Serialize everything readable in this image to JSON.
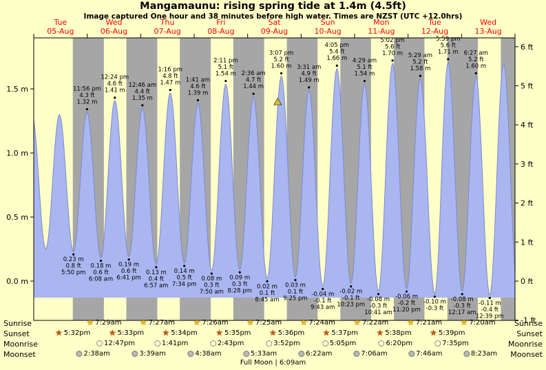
{
  "colors": {
    "background": "#ffffc8",
    "day_band": "#ffffc8",
    "night_band": "#a6a6a6",
    "tide_fill": "#aab6f0",
    "tide_line": "#7b8ad0",
    "date_label": "#ff0000",
    "marker": "#d6c428"
  },
  "chart_data": {
    "type": "area",
    "title": "Mangamaunu: rising  spring tide at 1.4m (4.5ft)",
    "subtitle": "Image captured One hour and 38 minutes before high water. Times are NZST (UTC +12.0hrs)",
    "days": [
      {
        "dow": "Tue",
        "date": "05-Aug"
      },
      {
        "dow": "Wed",
        "date": "06-Aug"
      },
      {
        "dow": "Thu",
        "date": "07-Aug"
      },
      {
        "dow": "Fri",
        "date": "08-Aug"
      },
      {
        "dow": "Sat",
        "date": "09-Aug"
      },
      {
        "dow": "Sun",
        "date": "10-Aug"
      },
      {
        "dow": "Mon",
        "date": "11-Aug"
      },
      {
        "dow": "Tue",
        "date": "12-Aug"
      },
      {
        "dow": "Wed",
        "date": "13-Aug"
      }
    ],
    "y_axis_left": {
      "unit": "m",
      "ticks": [
        0,
        0.5,
        1,
        1.5
      ]
    },
    "y_axis_right": {
      "unit": "ft",
      "ticks": [
        -1,
        0,
        1,
        2,
        3,
        4,
        5,
        6
      ]
    },
    "tide_events": [
      {
        "hours": -0.8,
        "height_m": 1.3,
        "type": "high",
        "label": null
      },
      {
        "hours": 5.4,
        "height_m": 0.25,
        "type": "low",
        "label": null
      },
      {
        "hours": 11.5,
        "height_m": 1.3,
        "type": "high",
        "label": null
      },
      {
        "hours": 17.83,
        "height_m": 0.23,
        "type": "low",
        "label": [
          "0.23 m",
          "0.8 ft",
          "5:50 pm"
        ]
      },
      {
        "hours": 23.93,
        "height_m": 1.32,
        "type": "high",
        "label": [
          "11:56 pm",
          "4.3 ft",
          "1.32 m"
        ]
      },
      {
        "hours": 30.13,
        "height_m": 0.18,
        "type": "low",
        "label": [
          "0.18 m",
          "0.6 ft",
          "6:08 am"
        ]
      },
      {
        "hours": 36.4,
        "height_m": 1.41,
        "type": "high",
        "label": [
          "12:24 pm",
          "4.6 ft",
          "1.41 m"
        ]
      },
      {
        "hours": 42.68,
        "height_m": 0.19,
        "type": "low",
        "label": [
          "0.19 m",
          "0.6 ft",
          "6:41 pm"
        ]
      },
      {
        "hours": 48.77,
        "height_m": 1.35,
        "type": "high",
        "label": [
          "12:46 am",
          "4.4 ft",
          "1.35 m"
        ]
      },
      {
        "hours": 54.95,
        "height_m": 0.13,
        "type": "low",
        "label": [
          "0.13 m",
          "0.4 ft",
          "6:57 am"
        ]
      },
      {
        "hours": 61.27,
        "height_m": 1.47,
        "type": "high",
        "label": [
          "1:16 pm",
          "4.8 ft",
          "1.47 m"
        ]
      },
      {
        "hours": 67.57,
        "height_m": 0.14,
        "type": "low",
        "label": [
          "0.14 m",
          "0.5 ft",
          "7:34 pm"
        ]
      },
      {
        "hours": 73.68,
        "height_m": 1.39,
        "type": "high",
        "label": [
          "1:41 am",
          "4.6 ft",
          "1.39 m"
        ]
      },
      {
        "hours": 79.83,
        "height_m": 0.08,
        "type": "low",
        "label": [
          "0.08 m",
          "0.3 ft",
          "7:50 am"
        ]
      },
      {
        "hours": 86.18,
        "height_m": 1.54,
        "type": "high",
        "label": [
          "2:11 pm",
          "5.1 ft",
          "1.54 m"
        ]
      },
      {
        "hours": 92.47,
        "height_m": 0.09,
        "type": "low",
        "label": [
          "0.09 m",
          "0.3 ft",
          "8:28 pm"
        ]
      },
      {
        "hours": 98.6,
        "height_m": 1.44,
        "type": "high",
        "label": [
          "2:36 am",
          "4.7 ft",
          "1.44 m"
        ]
      },
      {
        "hours": 104.75,
        "height_m": 0.02,
        "type": "low",
        "label": [
          "0.02 m",
          "0.1 ft",
          "8:45 am"
        ]
      },
      {
        "hours": 111.12,
        "height_m": 1.6,
        "type": "high",
        "label": [
          "3:07 pm",
          "5.2 ft",
          "1.60 m"
        ]
      },
      {
        "hours": 117.42,
        "height_m": 0.03,
        "type": "low",
        "label": [
          "0.03 m",
          "0.1 ft",
          "9:25 pm"
        ]
      },
      {
        "hours": 123.52,
        "height_m": 1.49,
        "type": "high",
        "label": [
          "3:31 am",
          "4.9 ft",
          "1.49 m"
        ]
      },
      {
        "hours": 129.72,
        "height_m": -0.04,
        "type": "low",
        "label": [
          "-0.04 m",
          "-0.1 ft",
          "9:43 am"
        ]
      },
      {
        "hours": 136.08,
        "height_m": 1.66,
        "type": "high",
        "label": [
          "4:05 pm",
          "5.4 ft",
          "1.66 m"
        ]
      },
      {
        "hours": 142.38,
        "height_m": -0.02,
        "type": "low",
        "label": [
          "-0.02 m",
          "-0.1 ft",
          "10:23 pm"
        ]
      },
      {
        "hours": 148.48,
        "height_m": 1.54,
        "type": "high",
        "label": [
          "4:29 am",
          "5.1 ft",
          "1.54 m"
        ]
      },
      {
        "hours": 154.68,
        "height_m": -0.08,
        "type": "low",
        "label": [
          "-0.08 m",
          "-0.3 ft",
          "10:41 am"
        ]
      },
      {
        "hours": 161.03,
        "height_m": 1.7,
        "type": "high",
        "label": [
          "5:02 pm",
          "5.6 ft",
          "1.70 m"
        ]
      },
      {
        "hours": 167.33,
        "height_m": -0.06,
        "type": "low",
        "label": [
          "-0.06 m",
          "-0.2 ft",
          "11:20 pm"
        ]
      },
      {
        "hours": 173.48,
        "height_m": 1.58,
        "type": "high",
        "label": [
          "5:29 am",
          "5.2 ft",
          "1.58 m"
        ]
      },
      {
        "hours": 179.97,
        "height_m": -0.1,
        "type": "low",
        "label": [
          "-0.10 m",
          "-0.3 ft"
        ]
      },
      {
        "hours": 185.98,
        "height_m": 1.71,
        "type": "high",
        "label": [
          "5:59 pm",
          "5.6 ft",
          "1.71 m"
        ]
      },
      {
        "hours": 192.28,
        "height_m": -0.08,
        "type": "low",
        "label": [
          "-0.08 m",
          "-0.3 ft",
          "12:17 am"
        ]
      },
      {
        "hours": 198.45,
        "height_m": 1.6,
        "type": "high",
        "label": [
          "6:27 am",
          "5.2 ft",
          "1.60 m"
        ]
      },
      {
        "hours": 204.65,
        "height_m": -0.11,
        "type": "low",
        "label": [
          "-0.11 m",
          "-0.4 ft",
          "12:39 pm"
        ]
      },
      {
        "hours": 210.9,
        "height_m": 1.7,
        "type": "high",
        "label": null
      },
      {
        "hours": 217.2,
        "height_m": -0.1,
        "type": "low",
        "label": null
      }
    ],
    "current_position_marker": {
      "symbol": "triangle",
      "hours": 109.5,
      "height_m": 1.4,
      "color": "#d6c428"
    }
  },
  "astro": {
    "rows": [
      {
        "label": "Sunrise",
        "icon": "sunrise-star",
        "events": [
          {
            "day": 1,
            "time": "7:29am"
          },
          {
            "day": 2,
            "time": "7:27am"
          },
          {
            "day": 3,
            "time": "7:26am"
          },
          {
            "day": 4,
            "time": "7:25am"
          },
          {
            "day": 5,
            "time": "7:24am"
          },
          {
            "day": 6,
            "time": "7:22am"
          },
          {
            "day": 7,
            "time": "7:21am"
          },
          {
            "day": 8,
            "time": "7:20am"
          }
        ]
      },
      {
        "label": "Sunset",
        "icon": "sunset-star",
        "events": [
          {
            "day": 0,
            "time": "5:32pm"
          },
          {
            "day": 1,
            "time": "5:33pm"
          },
          {
            "day": 2,
            "time": "5:34pm"
          },
          {
            "day": 3,
            "time": "5:35pm"
          },
          {
            "day": 4,
            "time": "5:36pm"
          },
          {
            "day": 5,
            "time": "5:37pm"
          },
          {
            "day": 6,
            "time": "5:38pm"
          },
          {
            "day": 7,
            "time": "5:39pm"
          }
        ]
      },
      {
        "label": "Moonrise",
        "icon": "moonrise-circle",
        "events": [
          {
            "day": 1,
            "time": "12:47pm"
          },
          {
            "day": 2,
            "time": "1:41pm"
          },
          {
            "day": 3,
            "time": "2:43pm"
          },
          {
            "day": 4,
            "time": "3:52pm"
          },
          {
            "day": 5,
            "time": "5:05pm"
          },
          {
            "day": 6,
            "time": "6:20pm"
          },
          {
            "day": 7,
            "time": "7:35pm"
          }
        ]
      },
      {
        "label": "Moonset",
        "icon": "moonset-circle",
        "events": [
          {
            "day": 1,
            "time": "2:38am"
          },
          {
            "day": 2,
            "time": "3:39am"
          },
          {
            "day": 3,
            "time": "4:38am"
          },
          {
            "day": 4,
            "time": "5:33am"
          },
          {
            "day": 5,
            "time": "6:22am"
          },
          {
            "day": 6,
            "time": "7:06am"
          },
          {
            "day": 7,
            "time": "7:46am"
          },
          {
            "day": 8,
            "time": "8:23am"
          }
        ]
      }
    ],
    "footer": "Full Moon | 6:09am"
  }
}
